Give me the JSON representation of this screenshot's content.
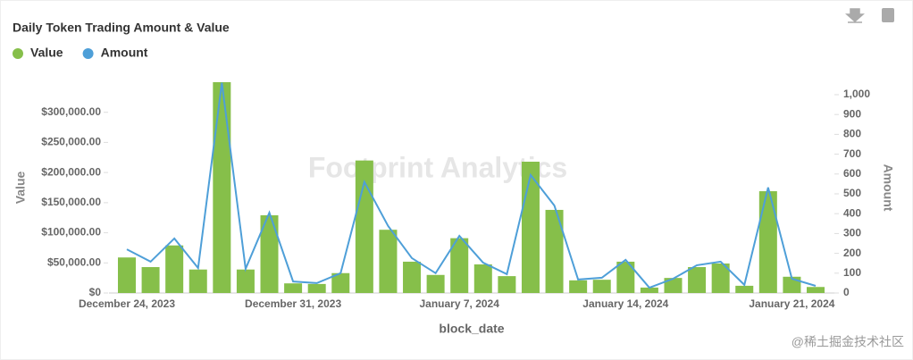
{
  "chart_data": {
    "type": "bar-line",
    "title": "Daily Token Trading Amount & Value",
    "watermark": "Footprint Analytics",
    "credit": "@稀土掘金技术社区",
    "x_label": "block_date",
    "y_label": "Value",
    "y2_label": "Amount",
    "categories": [
      "December 24, 2023",
      null,
      null,
      null,
      null,
      null,
      null,
      "December 31, 2023",
      null,
      null,
      null,
      null,
      null,
      null,
      "January 7, 2024",
      null,
      null,
      null,
      null,
      null,
      null,
      "January 14, 2024",
      null,
      null,
      null,
      null,
      null,
      null,
      "January 21, 2024",
      null
    ],
    "series": [
      {
        "name": "Value",
        "color": "#86bf4a",
        "kind": "bar",
        "values": [
          59000,
          43000,
          79000,
          39000,
          350000,
          39000,
          129000,
          16000,
          15000,
          33000,
          220000,
          105000,
          52000,
          30000,
          91000,
          47500,
          28000,
          218000,
          138000,
          21000,
          22000,
          52000,
          9000,
          25000,
          43000,
          49000,
          12000,
          169000,
          27000,
          10000
        ]
      },
      {
        "name": "Amount",
        "color": "#4e9fd8",
        "kind": "line",
        "axis": "y2",
        "values": [
          220,
          158,
          275,
          126,
          1060,
          122,
          405,
          58,
          50,
          100,
          560,
          338,
          176,
          100,
          288,
          153,
          95,
          595,
          441,
          68,
          77,
          167,
          27,
          72,
          140,
          158,
          41,
          532,
          72,
          36
        ]
      }
    ],
    "ylim": [
      0,
      350000
    ],
    "yticks": [
      {
        "value": 0,
        "label": "$0"
      },
      {
        "value": 50000,
        "label": "$50,000.00"
      },
      {
        "value": 100000,
        "label": "$100,000.00"
      },
      {
        "value": 150000,
        "label": "$150,000.00"
      },
      {
        "value": 200000,
        "label": "$200,000.00"
      },
      {
        "value": 250000,
        "label": "$250,000.00"
      },
      {
        "value": 300000,
        "label": "$300,000.00"
      }
    ],
    "y2lim": [
      0,
      1063
    ],
    "y2ticks": [
      0,
      100,
      200,
      300,
      400,
      500,
      600,
      700,
      800,
      900,
      {
        "value": 1000,
        "label": "1,000"
      }
    ],
    "legend": "top-left"
  }
}
